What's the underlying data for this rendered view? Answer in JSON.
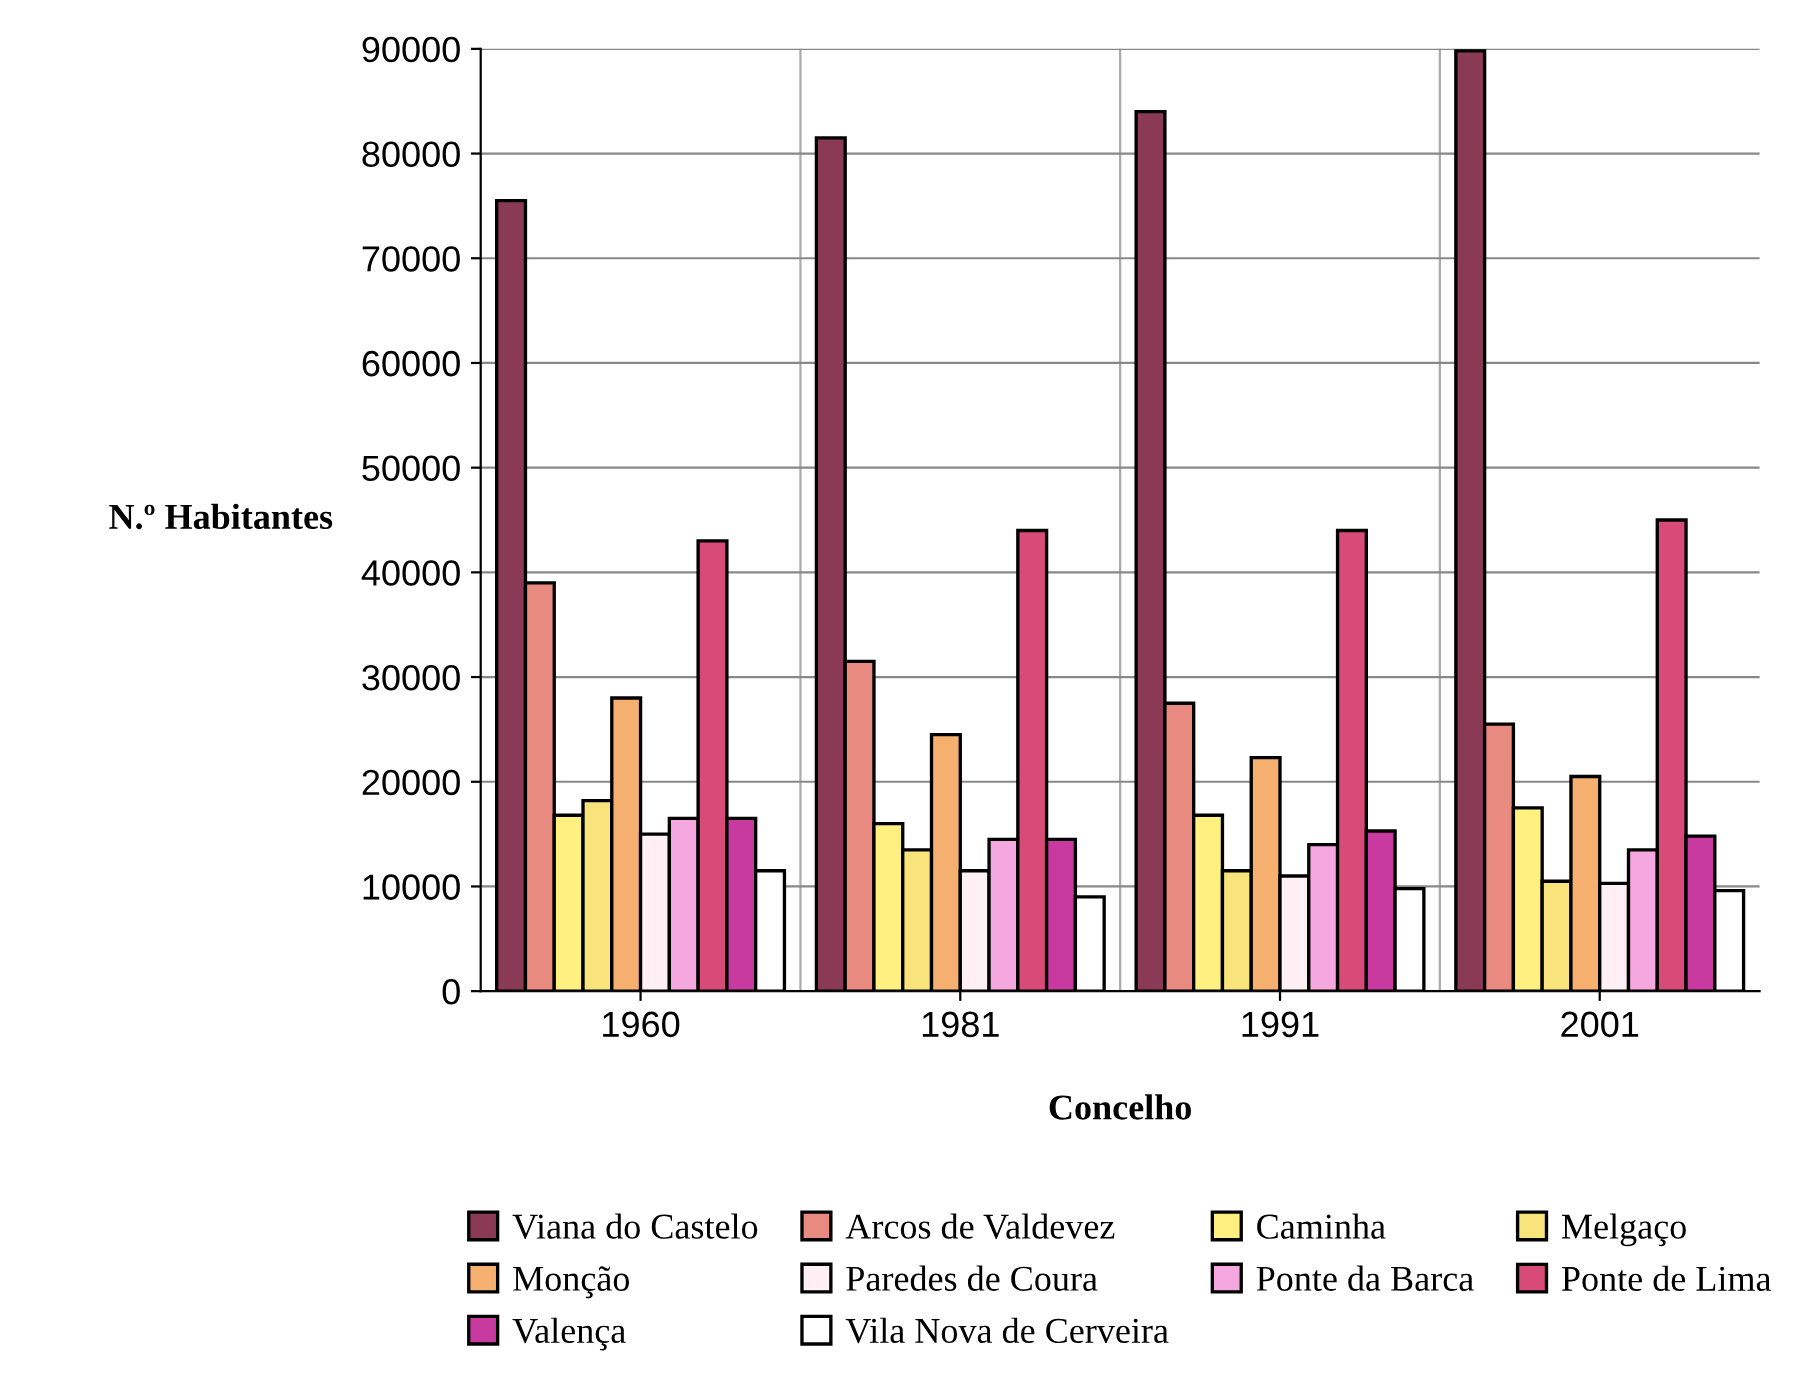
{
  "chart_data": {
    "type": "bar",
    "xlabel": "Concelho",
    "ylabel": "N.º Habitantes",
    "categories": [
      "1960",
      "1981",
      "1991",
      "2001"
    ],
    "series": [
      {
        "name": "Viana do Castelo",
        "color": "#8b3a55",
        "values": [
          75500,
          81500,
          84000,
          89800
        ]
      },
      {
        "name": "Arcos de Valdevez",
        "color": "#e88a80",
        "values": [
          39000,
          31500,
          27500,
          25500
        ]
      },
      {
        "name": "Caminha",
        "color": "#fff080",
        "values": [
          16800,
          16000,
          16800,
          17500
        ]
      },
      {
        "name": "Melgaço",
        "color": "#f8e47a",
        "values": [
          18200,
          13500,
          11500,
          10500
        ]
      },
      {
        "name": "Monção",
        "color": "#f5b070",
        "values": [
          28000,
          24500,
          22300,
          20500
        ]
      },
      {
        "name": "Paredes de Coura",
        "color": "#fff0f5",
        "values": [
          15000,
          11500,
          11000,
          10300
        ]
      },
      {
        "name": "Ponte da Barca",
        "color": "#f5a8e0",
        "values": [
          16500,
          14500,
          14000,
          13500
        ]
      },
      {
        "name": "Ponte de Lima",
        "color": "#d84a78",
        "values": [
          43000,
          44000,
          44000,
          45000
        ]
      },
      {
        "name": "Valença",
        "color": "#c83aa0",
        "values": [
          16500,
          14500,
          15300,
          14800
        ]
      },
      {
        "name": "Vila Nova de Cerveira",
        "color": "#ffffff",
        "values": [
          11500,
          9000,
          9800,
          9600
        ]
      }
    ],
    "ylim": [
      0,
      90000
    ],
    "yticks": [
      0,
      10000,
      20000,
      30000,
      40000,
      50000,
      60000,
      70000,
      80000,
      90000
    ],
    "grid": "y",
    "legend": "bottom"
  }
}
